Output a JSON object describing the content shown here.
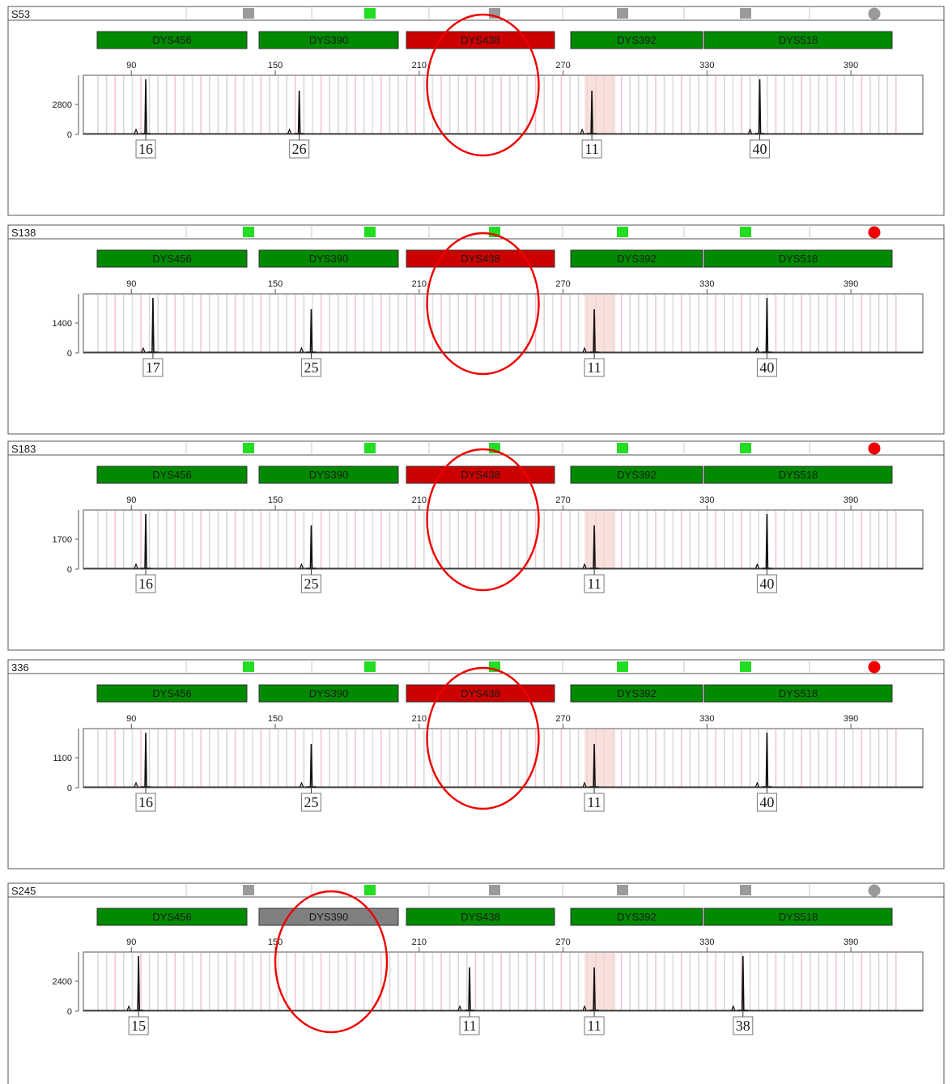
{
  "colors": {
    "pass": "#008a00",
    "fail": "#cc0000",
    "gray": "#808080",
    "indicator_green": "#22dd22",
    "indicator_gray": "#9a9a9a",
    "circle_red": "#ee0000",
    "highlight": "#ee0000"
  },
  "panels": [
    {
      "sample": "S53",
      "markers": [
        {
          "name": "DYS456",
          "status": "pass"
        },
        {
          "name": "DYS390",
          "status": "pass"
        },
        {
          "name": "DYS438",
          "status": "fail"
        },
        {
          "name": "DYS392",
          "status": "pass"
        },
        {
          "name": "DYS518",
          "status": "pass"
        }
      ],
      "indicators": [
        "gray",
        "green",
        "gray",
        "gray",
        "gray"
      ],
      "status_dot": "gray",
      "x_ticks": [
        90,
        150,
        210,
        270,
        330,
        390
      ],
      "y_label": "2800",
      "calls": [
        "16",
        "26",
        "11",
        "40"
      ],
      "highlight_marker": "DYS438"
    },
    {
      "sample": "S138",
      "markers": [
        {
          "name": "DYS456",
          "status": "pass"
        },
        {
          "name": "DYS390",
          "status": "pass"
        },
        {
          "name": "DYS438",
          "status": "fail"
        },
        {
          "name": "DYS392",
          "status": "pass"
        },
        {
          "name": "DYS518",
          "status": "pass"
        }
      ],
      "indicators": [
        "green",
        "green",
        "green",
        "green",
        "green"
      ],
      "status_dot": "red",
      "x_ticks": [
        90,
        150,
        210,
        270,
        330,
        390
      ],
      "y_label": "1400",
      "calls": [
        "17",
        "25",
        "11",
        "40"
      ],
      "highlight_marker": "DYS438"
    },
    {
      "sample": "S183",
      "markers": [
        {
          "name": "DYS456",
          "status": "pass"
        },
        {
          "name": "DYS390",
          "status": "pass"
        },
        {
          "name": "DYS438",
          "status": "fail"
        },
        {
          "name": "DYS392",
          "status": "pass"
        },
        {
          "name": "DYS518",
          "status": "pass"
        }
      ],
      "indicators": [
        "green",
        "green",
        "green",
        "green",
        "green"
      ],
      "status_dot": "red",
      "x_ticks": [
        90,
        150,
        210,
        270,
        330,
        390
      ],
      "y_label": "1700",
      "calls": [
        "16",
        "25",
        "11",
        "40"
      ],
      "highlight_marker": "DYS438"
    },
    {
      "sample": "336",
      "markers": [
        {
          "name": "DYS456",
          "status": "pass"
        },
        {
          "name": "DYS390",
          "status": "pass"
        },
        {
          "name": "DYS438",
          "status": "fail"
        },
        {
          "name": "DYS392",
          "status": "pass"
        },
        {
          "name": "DYS518",
          "status": "pass"
        }
      ],
      "indicators": [
        "green",
        "green",
        "green",
        "green",
        "green"
      ],
      "status_dot": "red",
      "x_ticks": [
        90,
        150,
        210,
        270,
        330,
        390
      ],
      "y_label": "1100",
      "calls": [
        "16",
        "25",
        "11",
        "40"
      ],
      "highlight_marker": "DYS438"
    },
    {
      "sample": "S245",
      "markers": [
        {
          "name": "DYS456",
          "status": "pass"
        },
        {
          "name": "DYS390",
          "status": "gray"
        },
        {
          "name": "DYS438",
          "status": "pass"
        },
        {
          "name": "DYS392",
          "status": "pass"
        },
        {
          "name": "DYS518",
          "status": "pass"
        }
      ],
      "indicators": [
        "gray",
        "green",
        "gray",
        "gray",
        "gray"
      ],
      "status_dot": "gray",
      "x_ticks": [
        90,
        150,
        210,
        270,
        330,
        390
      ],
      "y_label": "2400",
      "calls": [
        "15",
        "11",
        "11",
        "38"
      ],
      "highlight_marker": "DYS390"
    }
  ],
  "chart_data": [
    {
      "type": "line",
      "title": "S53",
      "x": [
        96,
        160,
        282,
        352
      ],
      "y_tick": 2800,
      "xlim": [
        70,
        420
      ],
      "calls": {
        "DYS456": "16",
        "DYS390": "26",
        "DYS392": "11",
        "DYS518": "40"
      },
      "no_call": "DYS438"
    },
    {
      "type": "line",
      "title": "S138",
      "x": [
        99,
        165,
        283,
        355
      ],
      "y_tick": 1400,
      "xlim": [
        70,
        420
      ],
      "calls": {
        "DYS456": "17",
        "DYS390": "25",
        "DYS392": "11",
        "DYS518": "40"
      },
      "no_call": "DYS438"
    },
    {
      "type": "line",
      "title": "S183",
      "x": [
        96,
        165,
        283,
        355
      ],
      "y_tick": 1700,
      "xlim": [
        70,
        420
      ],
      "calls": {
        "DYS456": "16",
        "DYS390": "25",
        "DYS392": "11",
        "DYS518": "40"
      },
      "no_call": "DYS438"
    },
    {
      "type": "line",
      "title": "336",
      "x": [
        96,
        165,
        283,
        355
      ],
      "y_tick": 1100,
      "xlim": [
        70,
        420
      ],
      "calls": {
        "DYS456": "16",
        "DYS390": "25",
        "DYS392": "11",
        "DYS518": "40"
      },
      "no_call": "DYS438"
    },
    {
      "type": "line",
      "title": "S245",
      "x": [
        93,
        231,
        283,
        345
      ],
      "y_tick": 2400,
      "xlim": [
        70,
        420
      ],
      "calls": {
        "DYS456": "15",
        "DYS438": "11",
        "DYS392": "11",
        "DYS518": "38"
      },
      "no_call": "DYS390"
    }
  ]
}
